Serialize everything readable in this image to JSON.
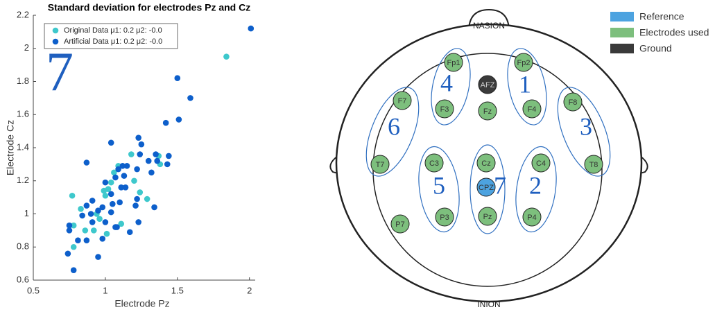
{
  "chart_data": {
    "type": "scatter",
    "title": "Standard deviation for electrodes Pz and Cz",
    "x_label": "Electrode Pz",
    "y_label": "Electrode Cz",
    "annotation": "7",
    "xlim": [
      0.5,
      2.04
    ],
    "ylim": [
      0.6,
      2.2
    ],
    "xticks": [
      0.5,
      1,
      1.5,
      2
    ],
    "yticks": [
      0.6,
      0.8,
      1,
      1.2,
      1.4,
      1.6,
      1.8,
      2,
      2.2
    ],
    "legend": "upper left",
    "series": [
      {
        "name": "Original Data μ1: 0.2 μ2: -0.0",
        "color": "#3ec8cc",
        "x": [
          1.84,
          0.77,
          0.83,
          0.78,
          0.78,
          0.86,
          0.92,
          1.0,
          1.06,
          1.04,
          1.02,
          0.99,
          0.96,
          1.11,
          1.01,
          1.18,
          1.29,
          1.24,
          1.38,
          1.37,
          1.2,
          1.09,
          0.94
        ],
        "values": [
          1.95,
          1.11,
          1.03,
          0.93,
          0.8,
          0.9,
          0.9,
          1.11,
          1.25,
          1.19,
          1.15,
          1.14,
          0.97,
          0.94,
          0.88,
          1.36,
          1.09,
          1.13,
          1.3,
          1.35,
          1.2,
          1.29,
          1.0
        ]
      },
      {
        "name": "Artificial Data μ1: 0.2 μ2: -0.0",
        "color": "#0d5fcb",
        "x": [
          2.01,
          1.5,
          1.59,
          1.51,
          1.42,
          1.04,
          0.87,
          1.23,
          1.25,
          1.24,
          1.35,
          1.44,
          1.43,
          1.36,
          1.3,
          1.32,
          1.22,
          1.15,
          1.12,
          1.09,
          1.13,
          1.07,
          1.0,
          1.14,
          1.11,
          1.04,
          1.1,
          1.05,
          0.98,
          0.95,
          0.87,
          0.9,
          0.84,
          0.75,
          0.75,
          0.81,
          0.87,
          0.74,
          0.78,
          0.95,
          0.98,
          1.07,
          1.08,
          1.17,
          1.23,
          1.21,
          1.34,
          1.04,
          1.0,
          0.91,
          1.22,
          0.91
        ],
        "values": [
          2.12,
          1.82,
          1.7,
          1.57,
          1.55,
          1.43,
          1.31,
          1.46,
          1.42,
          1.36,
          1.36,
          1.35,
          1.3,
          1.32,
          1.32,
          1.25,
          1.27,
          1.29,
          1.29,
          1.27,
          1.23,
          1.22,
          1.19,
          1.16,
          1.16,
          1.12,
          1.07,
          1.06,
          1.04,
          1.02,
          1.05,
          1.0,
          0.99,
          0.93,
          0.9,
          0.84,
          0.84,
          0.76,
          0.66,
          0.74,
          0.85,
          0.92,
          0.92,
          0.89,
          0.95,
          1.05,
          1.04,
          1.01,
          0.95,
          0.95,
          1.09,
          1.08
        ]
      }
    ]
  },
  "diagram": {
    "nasion": "NASION",
    "inion": "INION",
    "legend": [
      "Reference",
      "Electrodes used",
      "Ground"
    ],
    "electrodes": [
      "Fp1",
      "Fp2",
      "AFZ",
      "F7",
      "F3",
      "Fz",
      "F4",
      "F8",
      "T7",
      "C3",
      "Cz",
      "C4",
      "T8",
      "CPZ",
      "P3",
      "Pz",
      "P4",
      "P7"
    ],
    "groups": [
      "1",
      "2",
      "3",
      "4",
      "5",
      "6",
      "7"
    ]
  }
}
